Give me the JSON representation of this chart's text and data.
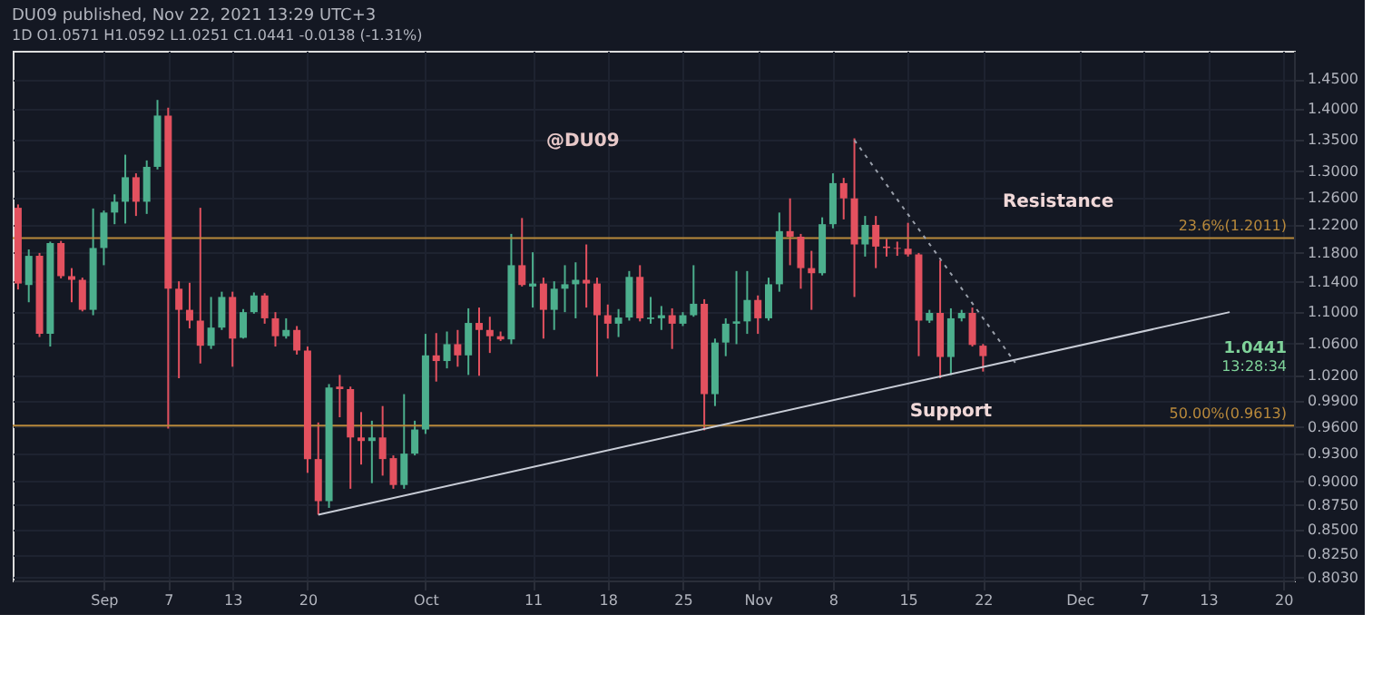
{
  "chart_data": {
    "type": "candlestick",
    "title": "DU09 published, Nov 22, 2021 13:29 UTC+3",
    "subtitle": "1D  O1.0571 H1.0592 L1.0251 C1.0441 -0.0138 (-1.31%)",
    "log": true,
    "grid": true,
    "xlim": [
      "2021-08-23T12:00",
      "2021-12-21"
    ],
    "xticks": [
      {
        "value": "2021-09-01",
        "label": "Sep"
      },
      {
        "value": "2021-09-07",
        "label": "7"
      },
      {
        "value": "2021-09-13",
        "label": "13"
      },
      {
        "value": "2021-09-20",
        "label": "20"
      },
      {
        "value": "2021-10-01",
        "label": "Oct"
      },
      {
        "value": "2021-10-11",
        "label": "11"
      },
      {
        "value": "2021-10-18",
        "label": "18"
      },
      {
        "value": "2021-10-25",
        "label": "25"
      },
      {
        "value": "2021-11-01",
        "label": "Nov"
      },
      {
        "value": "2021-11-08",
        "label": "8"
      },
      {
        "value": "2021-11-15",
        "label": "15"
      },
      {
        "value": "2021-11-22",
        "label": "22"
      },
      {
        "value": "2021-12-01",
        "label": "Dec"
      },
      {
        "value": "2021-12-07",
        "label": "7"
      },
      {
        "value": "2021-12-13",
        "label": "13"
      },
      {
        "value": "2021-12-20",
        "label": "20"
      }
    ],
    "ylim": [
      0.8,
      1.5
    ],
    "yticks": [
      {
        "value": 1.45,
        "label": "1.4500"
      },
      {
        "value": 1.4,
        "label": "1.4000"
      },
      {
        "value": 1.35,
        "label": "1.3500"
      },
      {
        "value": 1.3,
        "label": "1.3000"
      },
      {
        "value": 1.26,
        "label": "1.2600"
      },
      {
        "value": 1.22,
        "label": "1.2200"
      },
      {
        "value": 1.18,
        "label": "1.1800"
      },
      {
        "value": 1.14,
        "label": "1.1400"
      },
      {
        "value": 1.1,
        "label": "1.1000"
      },
      {
        "value": 1.06,
        "label": "1.0600"
      },
      {
        "value": 1.02,
        "label": "1.0200"
      },
      {
        "value": 0.99,
        "label": "0.9900"
      },
      {
        "value": 0.96,
        "label": "0.9600"
      },
      {
        "value": 0.93,
        "label": "0.9300"
      },
      {
        "value": 0.9,
        "label": "0.9000"
      },
      {
        "value": 0.875,
        "label": "0.8750"
      },
      {
        "value": 0.85,
        "label": "0.8500"
      },
      {
        "value": 0.825,
        "label": "0.8250"
      },
      {
        "value": 0.803,
        "label": "0.8030"
      }
    ],
    "series": [
      {
        "color": "#4caf8d",
        "x": [
          "2021-08-25",
          "2021-08-27",
          "2021-08-31",
          "2021-09-01",
          "2021-09-02",
          "2021-09-03",
          "2021-09-05",
          "2021-09-06",
          "2021-09-11",
          "2021-09-12",
          "2021-09-14",
          "2021-09-15",
          "2021-09-18",
          "2021-09-22",
          "2021-09-26",
          "2021-09-29",
          "2021-09-30",
          "2021-10-01",
          "2021-10-03",
          "2021-10-05",
          "2021-10-09",
          "2021-10-11",
          "2021-10-13",
          "2021-10-14",
          "2021-10-15",
          "2021-10-19",
          "2021-10-20",
          "2021-10-22",
          "2021-10-23",
          "2021-10-25",
          "2021-10-26",
          "2021-10-28",
          "2021-10-29",
          "2021-10-30",
          "2021-10-31",
          "2021-11-02",
          "2021-11-03",
          "2021-11-07",
          "2021-11-08",
          "2021-11-11",
          "2021-11-17",
          "2021-11-19",
          "2021-11-20"
        ],
        "ohlc": [
          [
            1.136,
            1.185,
            1.113,
            1.176
          ],
          [
            1.072,
            1.196,
            1.056,
            1.194
          ],
          [
            1.103,
            1.244,
            1.096,
            1.187
          ],
          [
            1.187,
            1.241,
            1.163,
            1.238
          ],
          [
            1.238,
            1.265,
            1.221,
            1.254
          ],
          [
            1.254,
            1.326,
            1.222,
            1.291
          ],
          [
            1.254,
            1.317,
            1.236,
            1.307
          ],
          [
            1.307,
            1.415,
            1.303,
            1.389
          ],
          [
            1.057,
            1.12,
            1.053,
            1.08
          ],
          [
            1.08,
            1.127,
            1.077,
            1.12
          ],
          [
            1.067,
            1.104,
            1.066,
            1.1
          ],
          [
            1.1,
            1.126,
            1.098,
            1.122
          ],
          [
            1.069,
            1.092,
            1.066,
            1.077
          ],
          [
            0.879,
            1.01,
            0.872,
            1.006
          ],
          [
            0.944,
            0.967,
            0.898,
            0.948
          ],
          [
            0.896,
            0.998,
            0.892,
            0.93
          ],
          [
            0.93,
            0.967,
            0.928,
            0.957
          ],
          [
            0.957,
            1.072,
            0.952,
            1.045
          ],
          [
            1.038,
            1.075,
            1.029,
            1.059
          ],
          [
            1.045,
            1.105,
            1.021,
            1.086
          ],
          [
            1.065,
            1.207,
            1.059,
            1.163
          ],
          [
            1.134,
            1.181,
            1.106,
            1.138
          ],
          [
            1.103,
            1.141,
            1.077,
            1.131
          ],
          [
            1.131,
            1.163,
            1.1,
            1.137
          ],
          [
            1.137,
            1.167,
            1.092,
            1.143
          ],
          [
            1.085,
            1.104,
            1.068,
            1.093
          ],
          [
            1.093,
            1.155,
            1.089,
            1.147
          ],
          [
            1.091,
            1.12,
            1.085,
            1.093
          ],
          [
            1.092,
            1.108,
            1.077,
            1.096
          ],
          [
            1.085,
            1.1,
            1.082,
            1.096
          ],
          [
            1.096,
            1.163,
            1.094,
            1.111
          ],
          [
            0.998,
            1.066,
            0.984,
            1.061
          ],
          [
            1.061,
            1.092,
            1.044,
            1.085
          ],
          [
            1.085,
            1.155,
            1.059,
            1.088
          ],
          [
            1.088,
            1.155,
            1.072,
            1.116
          ],
          [
            1.092,
            1.146,
            1.089,
            1.137
          ],
          [
            1.137,
            1.238,
            1.127,
            1.211
          ],
          [
            1.152,
            1.231,
            1.149,
            1.221
          ],
          [
            1.221,
            1.297,
            1.215,
            1.282
          ],
          [
            1.192,
            1.233,
            1.175,
            1.22
          ],
          [
            1.089,
            1.103,
            1.086,
            1.099
          ],
          [
            1.043,
            1.105,
            1.021,
            1.092
          ],
          [
            1.092,
            1.103,
            1.088,
            1.099
          ]
        ]
      },
      {
        "color": "#e3515f",
        "x": [
          "2021-08-24",
          "2021-08-26",
          "2021-08-28",
          "2021-08-29",
          "2021-08-30",
          "2021-09-04",
          "2021-09-07",
          "2021-09-08",
          "2021-09-09",
          "2021-09-10",
          "2021-09-13",
          "2021-09-16",
          "2021-09-17",
          "2021-09-19",
          "2021-09-20",
          "2021-09-21",
          "2021-09-23",
          "2021-09-24",
          "2021-09-25",
          "2021-09-27",
          "2021-09-28",
          "2021-10-02",
          "2021-10-04",
          "2021-10-06",
          "2021-10-07",
          "2021-10-08",
          "2021-10-10",
          "2021-10-12",
          "2021-10-16",
          "2021-10-17",
          "2021-10-18",
          "2021-10-21",
          "2021-10-24",
          "2021-10-27",
          "2021-11-01",
          "2021-11-04",
          "2021-11-05",
          "2021-11-06",
          "2021-11-09",
          "2021-11-10",
          "2021-11-12",
          "2021-11-13",
          "2021-11-14",
          "2021-11-15",
          "2021-11-16",
          "2021-11-18",
          "2021-11-21",
          "2021-11-22"
        ],
        "ohlc": [
          [
            1.245,
            1.25,
            1.13,
            1.138
          ],
          [
            1.176,
            1.18,
            1.068,
            1.072
          ],
          [
            1.194,
            1.197,
            1.145,
            1.148
          ],
          [
            1.148,
            1.159,
            1.113,
            1.143
          ],
          [
            1.143,
            1.146,
            1.101,
            1.103
          ],
          [
            1.291,
            1.297,
            1.233,
            1.254
          ],
          [
            1.389,
            1.402,
            0.958,
            1.131
          ],
          [
            1.131,
            1.141,
            1.017,
            1.103
          ],
          [
            1.103,
            1.139,
            1.079,
            1.089
          ],
          [
            1.089,
            1.245,
            1.035,
            1.057
          ],
          [
            1.12,
            1.127,
            1.031,
            1.066
          ],
          [
            1.122,
            1.125,
            1.085,
            1.092
          ],
          [
            1.092,
            1.1,
            1.056,
            1.069
          ],
          [
            1.077,
            1.082,
            1.046,
            1.051
          ],
          [
            1.051,
            1.056,
            0.909,
            0.924
          ],
          [
            0.924,
            0.965,
            0.865,
            0.879
          ],
          [
            1.007,
            1.021,
            0.971,
            1.004
          ],
          [
            1.004,
            1.007,
            0.892,
            0.948
          ],
          [
            0.948,
            0.977,
            0.918,
            0.944
          ],
          [
            0.948,
            0.984,
            0.906,
            0.924
          ],
          [
            0.925,
            0.928,
            0.892,
            0.896
          ],
          [
            1.045,
            1.073,
            1.013,
            1.038
          ],
          [
            1.059,
            1.077,
            1.031,
            1.045
          ],
          [
            1.086,
            1.106,
            1.02,
            1.077
          ],
          [
            1.077,
            1.094,
            1.048,
            1.069
          ],
          [
            1.069,
            1.075,
            1.063,
            1.065
          ],
          [
            1.163,
            1.23,
            1.134,
            1.136
          ],
          [
            1.138,
            1.146,
            1.066,
            1.103
          ],
          [
            1.143,
            1.192,
            1.106,
            1.138
          ],
          [
            1.138,
            1.146,
            1.019,
            1.096
          ],
          [
            1.096,
            1.11,
            1.066,
            1.085
          ],
          [
            1.147,
            1.163,
            1.088,
            1.092
          ],
          [
            1.096,
            1.105,
            1.053,
            1.085
          ],
          [
            1.111,
            1.117,
            0.956,
            0.998
          ],
          [
            1.116,
            1.122,
            1.072,
            1.092
          ],
          [
            1.211,
            1.259,
            1.163,
            1.203
          ],
          [
            1.203,
            1.207,
            1.131,
            1.159
          ],
          [
            1.159,
            1.183,
            1.103,
            1.152
          ],
          [
            1.282,
            1.29,
            1.228,
            1.259
          ],
          [
            1.259,
            1.352,
            1.12,
            1.192
          ],
          [
            1.22,
            1.233,
            1.159,
            1.189
          ],
          [
            1.189,
            1.2,
            1.175,
            1.187
          ],
          [
            1.187,
            1.196,
            1.176,
            1.186
          ],
          [
            1.186,
            1.223,
            1.175,
            1.178
          ],
          [
            1.178,
            1.18,
            1.044,
            1.089
          ],
          [
            1.099,
            1.17,
            1.017,
            1.043
          ],
          [
            1.099,
            1.106,
            1.056,
            1.058
          ],
          [
            1.0571,
            1.0592,
            1.0251,
            1.0441
          ]
        ]
      },
      {
        "type": "line",
        "color": "#c8ccd6",
        "line_style": "solid",
        "x": [
          "2021-09-21",
          "2021-12-15"
        ],
        "values": [
          0.865,
          1.1
        ]
      },
      {
        "type": "line",
        "color": "#9aa0ab",
        "line_style": "dotted",
        "x": [
          "2021-11-10",
          "2021-11-25"
        ],
        "values": [
          1.349,
          1.036
        ]
      }
    ],
    "ref_lines": [
      {
        "axis": "y",
        "value": 1.2011,
        "label": "23.6%(1.2011)",
        "color": "#b8893b"
      },
      {
        "axis": "y",
        "value": 0.9613,
        "label": "50.00%(0.9613)",
        "color": "#b8893b"
      }
    ],
    "annotations": [
      "@DU09",
      {
        "text": "Resistance",
        "x": "2021-11-29",
        "y": 1.2011
      },
      {
        "text": "Support",
        "x": "2021-11-19",
        "y": 1.021
      },
      "1.0441",
      "13:28:34"
    ]
  }
}
